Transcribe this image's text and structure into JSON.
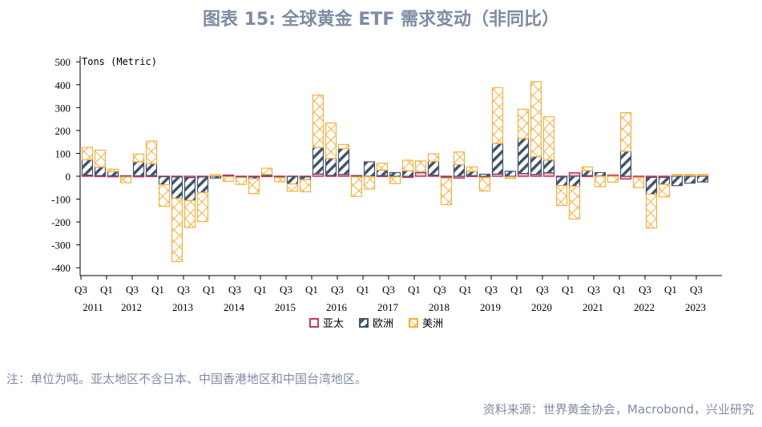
{
  "title": "图表 15: 全球黄金 ETF 需求变动（非同比）",
  "note": "注：单位为吨。亚太地区不含日本、中国香港地区和中国台湾地区。",
  "source": "资料来源：世界黄金协会，Macrobond，兴业研究",
  "chart_data": {
    "type": "bar",
    "stacked": true,
    "ylabel": "Tons (Metric)",
    "ylim": [
      -400,
      500
    ],
    "yticks": [
      500,
      400,
      300,
      200,
      100,
      0,
      -100,
      -200,
      -300,
      -400
    ],
    "categories": [
      "2011Q3",
      "2011Q4",
      "2012Q1",
      "2012Q2",
      "2012Q3",
      "2012Q4",
      "2013Q1",
      "2013Q2",
      "2013Q3",
      "2013Q4",
      "2014Q1",
      "2014Q2",
      "2014Q3",
      "2014Q4",
      "2015Q1",
      "2015Q2",
      "2015Q3",
      "2015Q4",
      "2016Q1",
      "2016Q2",
      "2016Q3",
      "2016Q4",
      "2017Q1",
      "2017Q2",
      "2017Q3",
      "2017Q4",
      "2018Q1",
      "2018Q2",
      "2018Q3",
      "2018Q4",
      "2019Q1",
      "2019Q2",
      "2019Q3",
      "2019Q4",
      "2020Q1",
      "2020Q2",
      "2020Q3",
      "2020Q4",
      "2021Q1",
      "2021Q2",
      "2021Q3",
      "2021Q4",
      "2022Q1",
      "2022Q2",
      "2022Q3",
      "2022Q4",
      "2023Q1",
      "2023Q2",
      "2023Q3"
    ],
    "x_tick_labels": [
      "Q3",
      "Q1",
      "Q3",
      "Q1",
      "Q3",
      "Q1",
      "Q3",
      "Q1",
      "Q3",
      "Q1",
      "Q3",
      "Q1",
      "Q3",
      "Q1",
      "Q3",
      "Q1",
      "Q3",
      "Q1",
      "Q3",
      "Q1",
      "Q3",
      "Q1",
      "Q3",
      "Q1",
      "Q3"
    ],
    "year_labels": [
      "2011",
      "2012",
      "2013",
      "2014",
      "2015",
      "2016",
      "2017",
      "2018",
      "2019",
      "2020",
      "2021",
      "2022",
      "2023"
    ],
    "series": [
      {
        "name": "亚太",
        "color": "#c8375a",
        "pattern": "solid-outline",
        "values": [
          5,
          3,
          2,
          2,
          2,
          3,
          -2,
          -3,
          -6,
          -3,
          2,
          5,
          -3,
          -3,
          3,
          -4,
          -1,
          -3,
          10,
          4,
          8,
          3,
          -2,
          3,
          -3,
          -5,
          18,
          5,
          -4,
          -8,
          3,
          -6,
          10,
          -3,
          12,
          8,
          15,
          -3,
          15,
          3,
          2,
          5,
          -12,
          -5,
          -5,
          -5,
          3,
          3,
          3
        ]
      },
      {
        "name": "欧洲",
        "color": "#44546a",
        "pattern": "diagonal-hatch",
        "values": [
          67,
          37,
          19,
          -3,
          61,
          52,
          -35,
          -94,
          -100,
          -68,
          -8,
          -2,
          -3,
          -8,
          5,
          -2,
          -33,
          -12,
          116,
          74,
          113,
          -3,
          63,
          24,
          16,
          24,
          2,
          60,
          -4,
          51,
          18,
          9,
          133,
          22,
          153,
          78,
          56,
          -38,
          -44,
          22,
          14,
          0,
          109,
          0,
          -74,
          -31,
          -41,
          -30,
          -25
        ]
      },
      {
        "name": "美洲",
        "color": "#f5b041",
        "pattern": "cross-hatch",
        "values": [
          54,
          74,
          10,
          -25,
          34,
          99,
          -95,
          -276,
          -118,
          -127,
          5,
          -20,
          -30,
          -65,
          27,
          -18,
          -31,
          -53,
          229,
          155,
          18,
          -85,
          -54,
          30,
          -29,
          46,
          47,
          33,
          -116,
          55,
          20,
          -58,
          244,
          -7,
          128,
          328,
          189,
          -87,
          -143,
          16,
          -46,
          -26,
          169,
          -45,
          -147,
          -54,
          5,
          5,
          5
        ]
      }
    ],
    "legend": "bottom",
    "grid": false
  }
}
